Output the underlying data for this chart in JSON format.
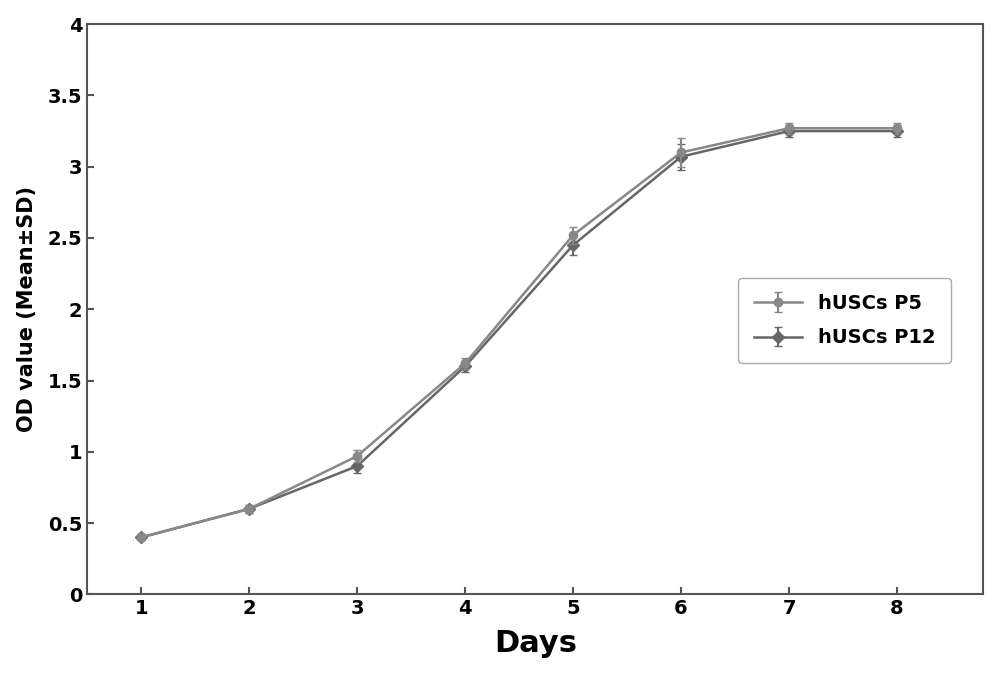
{
  "days": [
    1,
    2,
    3,
    4,
    5,
    6,
    7,
    8
  ],
  "p5_mean": [
    0.4,
    0.6,
    0.97,
    1.62,
    2.52,
    3.1,
    3.27,
    3.27
  ],
  "p5_err": [
    0.02,
    0.03,
    0.04,
    0.04,
    0.06,
    0.1,
    0.04,
    0.04
  ],
  "p12_mean": [
    0.4,
    0.6,
    0.9,
    1.6,
    2.45,
    3.07,
    3.25,
    3.25
  ],
  "p12_err": [
    0.02,
    0.03,
    0.05,
    0.04,
    0.07,
    0.09,
    0.04,
    0.04
  ],
  "line_color_p5": "#888888",
  "line_color_p12": "#666666",
  "xlabel": "Days",
  "ylabel": "OD value (Mean±SD)",
  "xlim": [
    0.5,
    8.8
  ],
  "ylim": [
    0,
    4.0
  ],
  "yticks": [
    0,
    0.5,
    1.0,
    1.5,
    2.0,
    2.5,
    3.0,
    3.5,
    4.0
  ],
  "xticks": [
    1,
    2,
    3,
    4,
    5,
    6,
    7,
    8
  ],
  "legend_labels": [
    "hUSCs P5",
    "hUSCs P12"
  ],
  "background_color": "#ffffff",
  "spine_color": "#555555"
}
